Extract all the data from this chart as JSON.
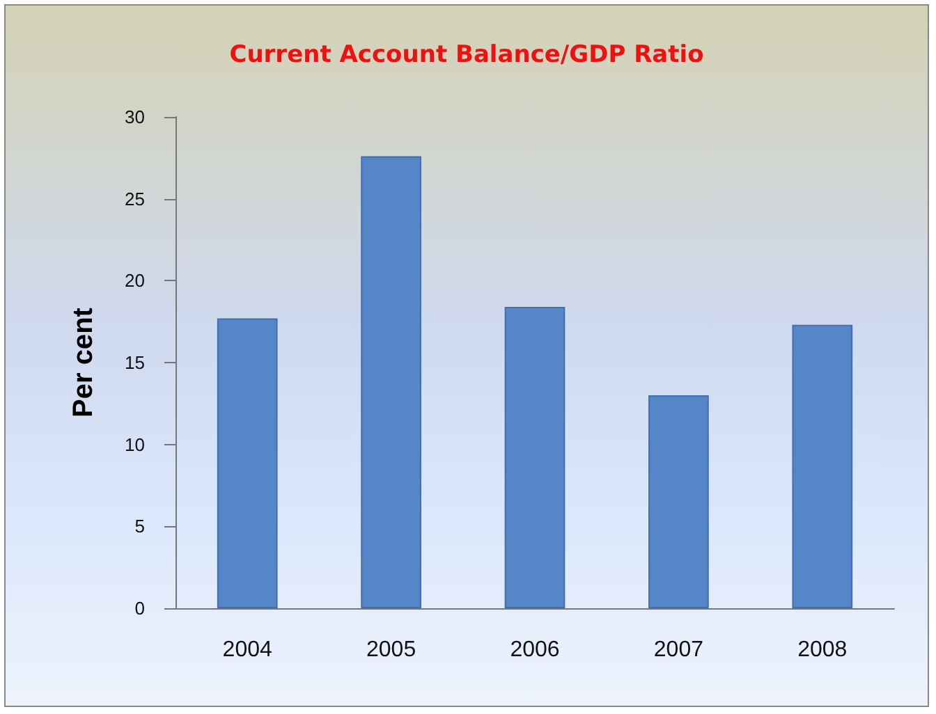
{
  "chart_data": {
    "type": "bar",
    "title": "Current Account Balance/GDP Ratio",
    "ylabel": "Per cent",
    "categories": [
      "2004",
      "2005",
      "2006",
      "2007",
      "2008"
    ],
    "values": [
      17.7,
      27.6,
      18.4,
      13.0,
      17.3
    ],
    "color": "#5587c8",
    "ylim": [
      0,
      30
    ],
    "yticks": [
      0,
      5,
      10,
      15,
      20,
      25,
      30
    ],
    "grid": false
  }
}
